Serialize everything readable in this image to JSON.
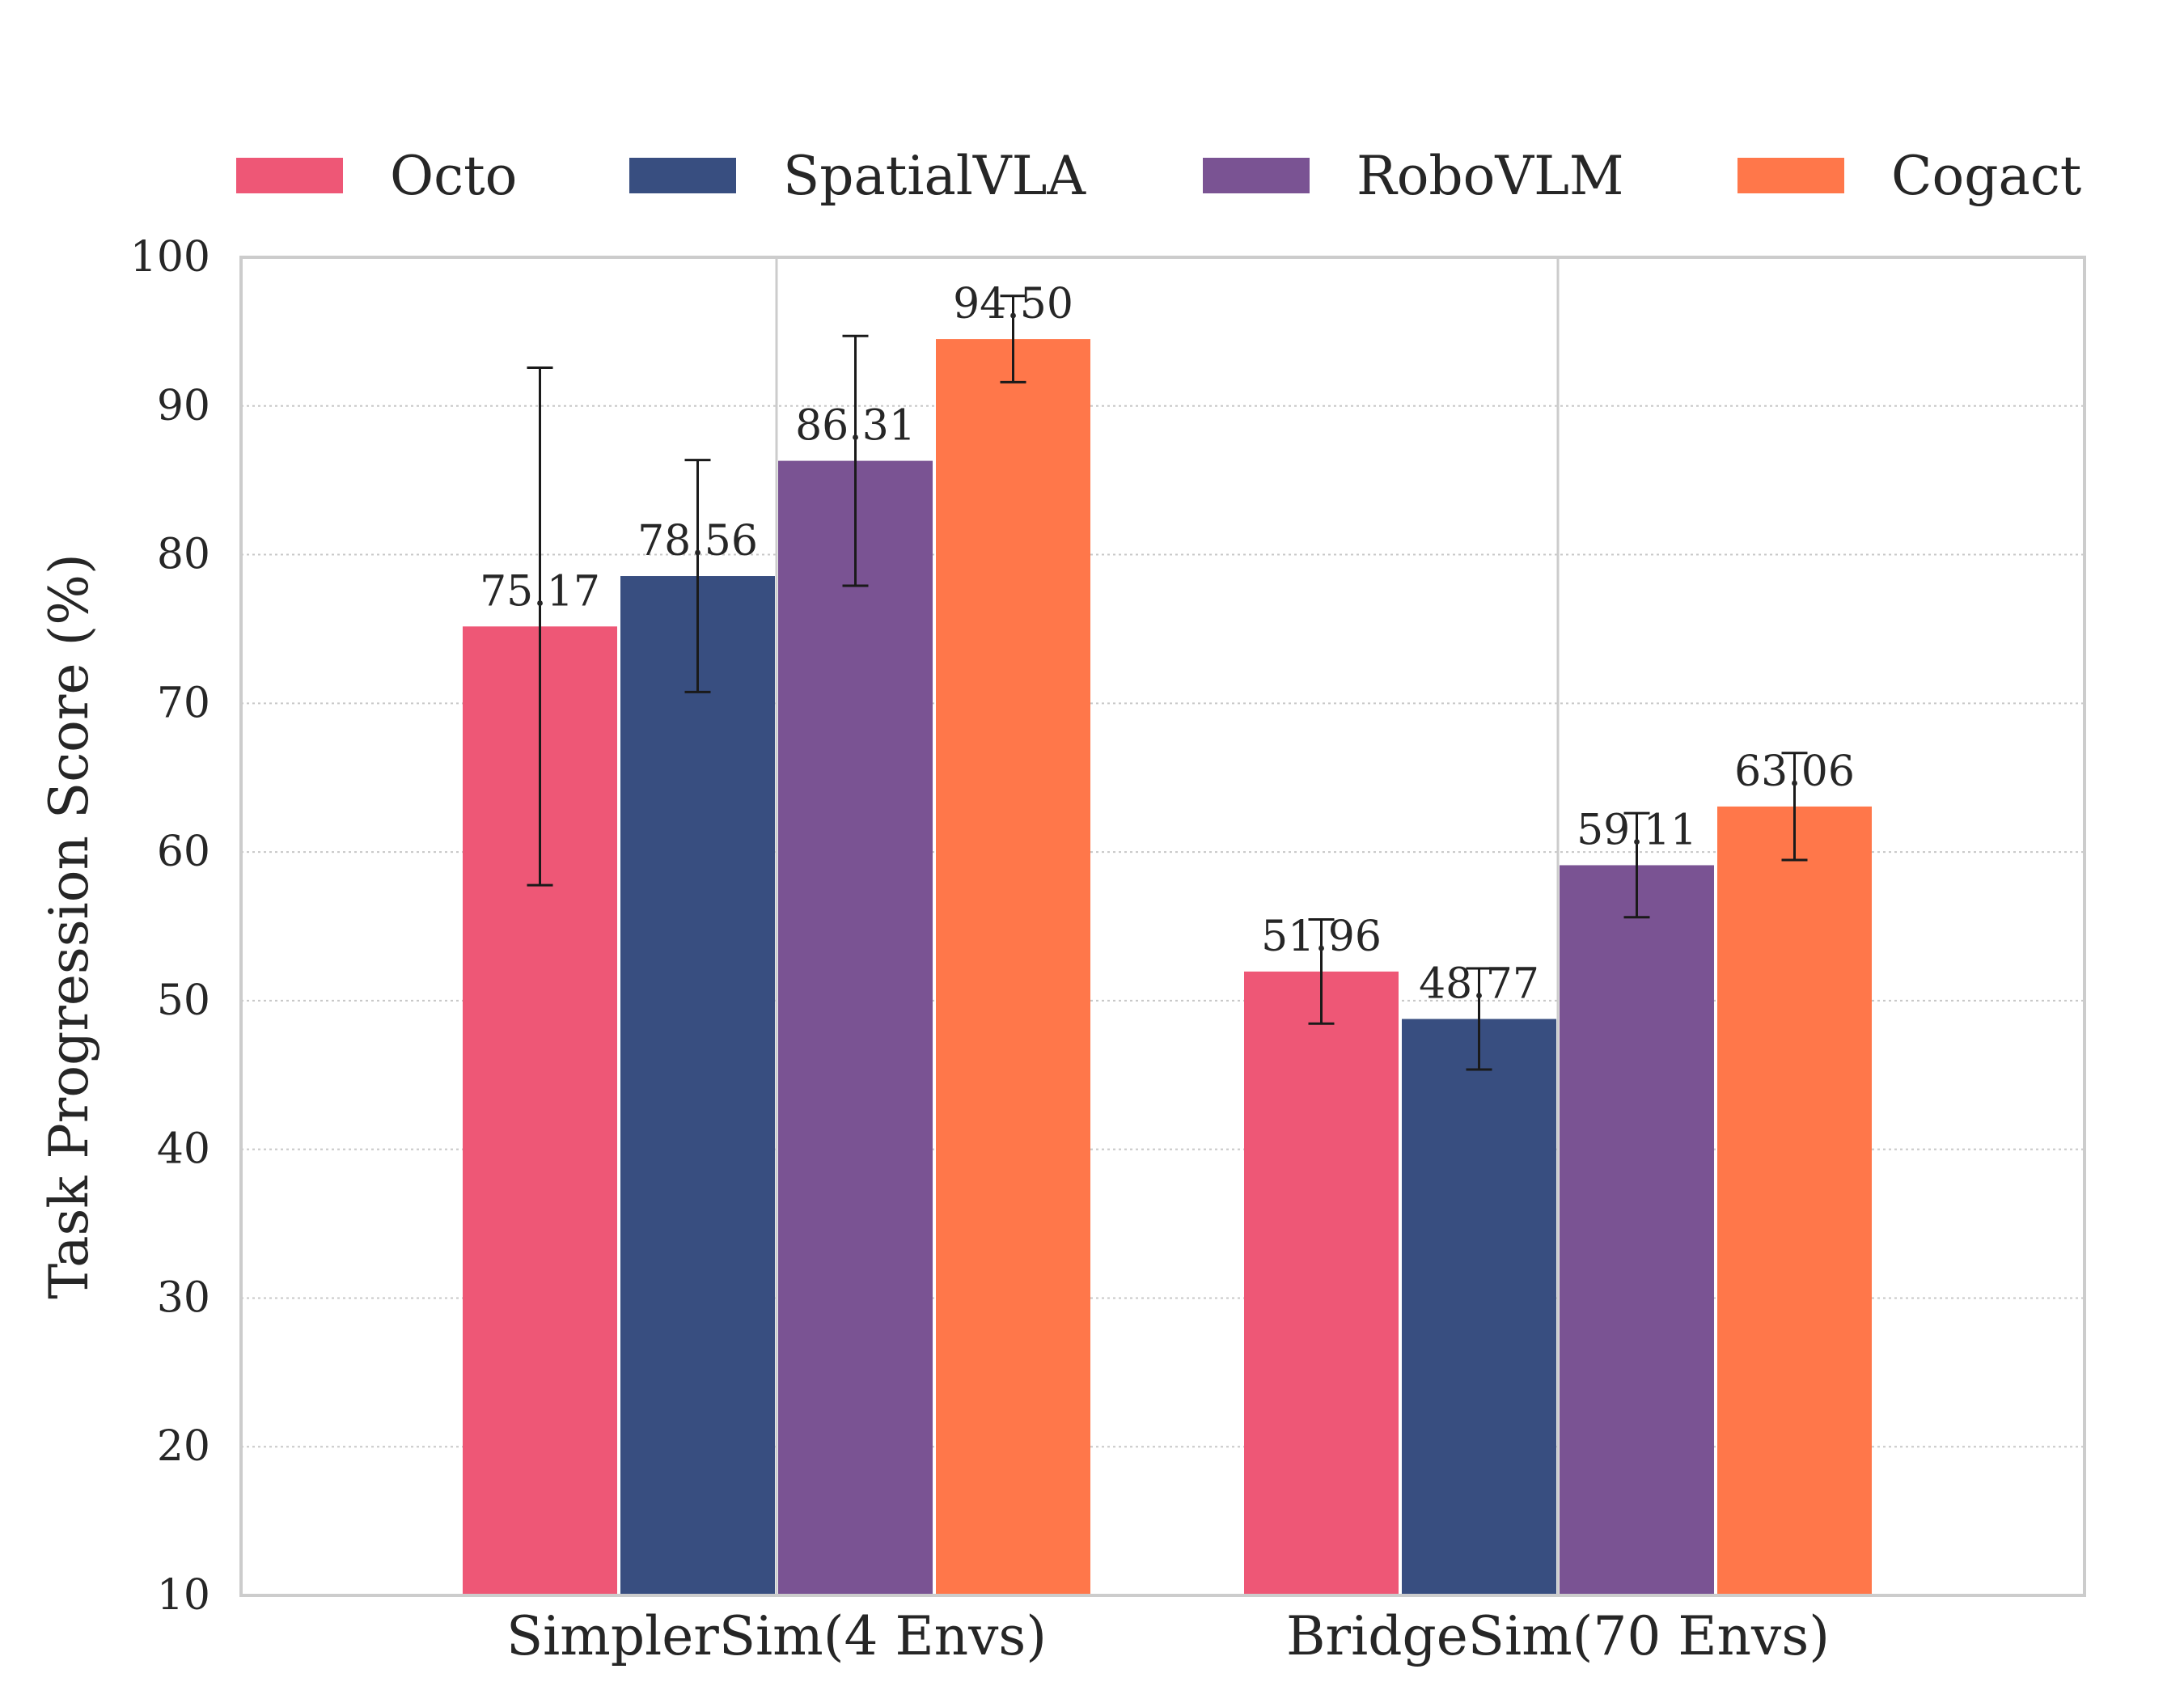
{
  "chart_data": {
    "type": "bar",
    "categories": [
      "SimplerSim(4 Envs)",
      "BridgeSim(70 Envs)"
    ],
    "series": [
      {
        "name": "Octo",
        "color": "#EE5776",
        "values": [
          75.17,
          51.96
        ],
        "errors": [
          17.4,
          3.5
        ]
      },
      {
        "name": "SpatialVLA",
        "color": "#384E80",
        "values": [
          78.56,
          48.77
        ],
        "errors": [
          7.8,
          3.4
        ]
      },
      {
        "name": "RoboVLM",
        "color": "#7A5393",
        "values": [
          86.31,
          59.11
        ],
        "errors": [
          8.4,
          3.5
        ]
      },
      {
        "name": "Cogact",
        "color": "#FF774A",
        "values": [
          94.5,
          63.06
        ],
        "errors": [
          2.9,
          3.6
        ]
      }
    ],
    "value_labels": [
      [
        "75.17",
        "51.96"
      ],
      [
        "78.56",
        "48.77"
      ],
      [
        "86.31",
        "59.11"
      ],
      [
        "94.50",
        "63.06"
      ]
    ],
    "title": "",
    "xlabel": "",
    "ylabel": "Task Progression Score (%)",
    "ylim": [
      10,
      100
    ],
    "yticks": [
      "10",
      "20",
      "30",
      "40",
      "50",
      "60",
      "70",
      "80",
      "90",
      "100"
    ],
    "grid": "horizontal dotted",
    "legend": "top, above plot, 4 columns"
  }
}
